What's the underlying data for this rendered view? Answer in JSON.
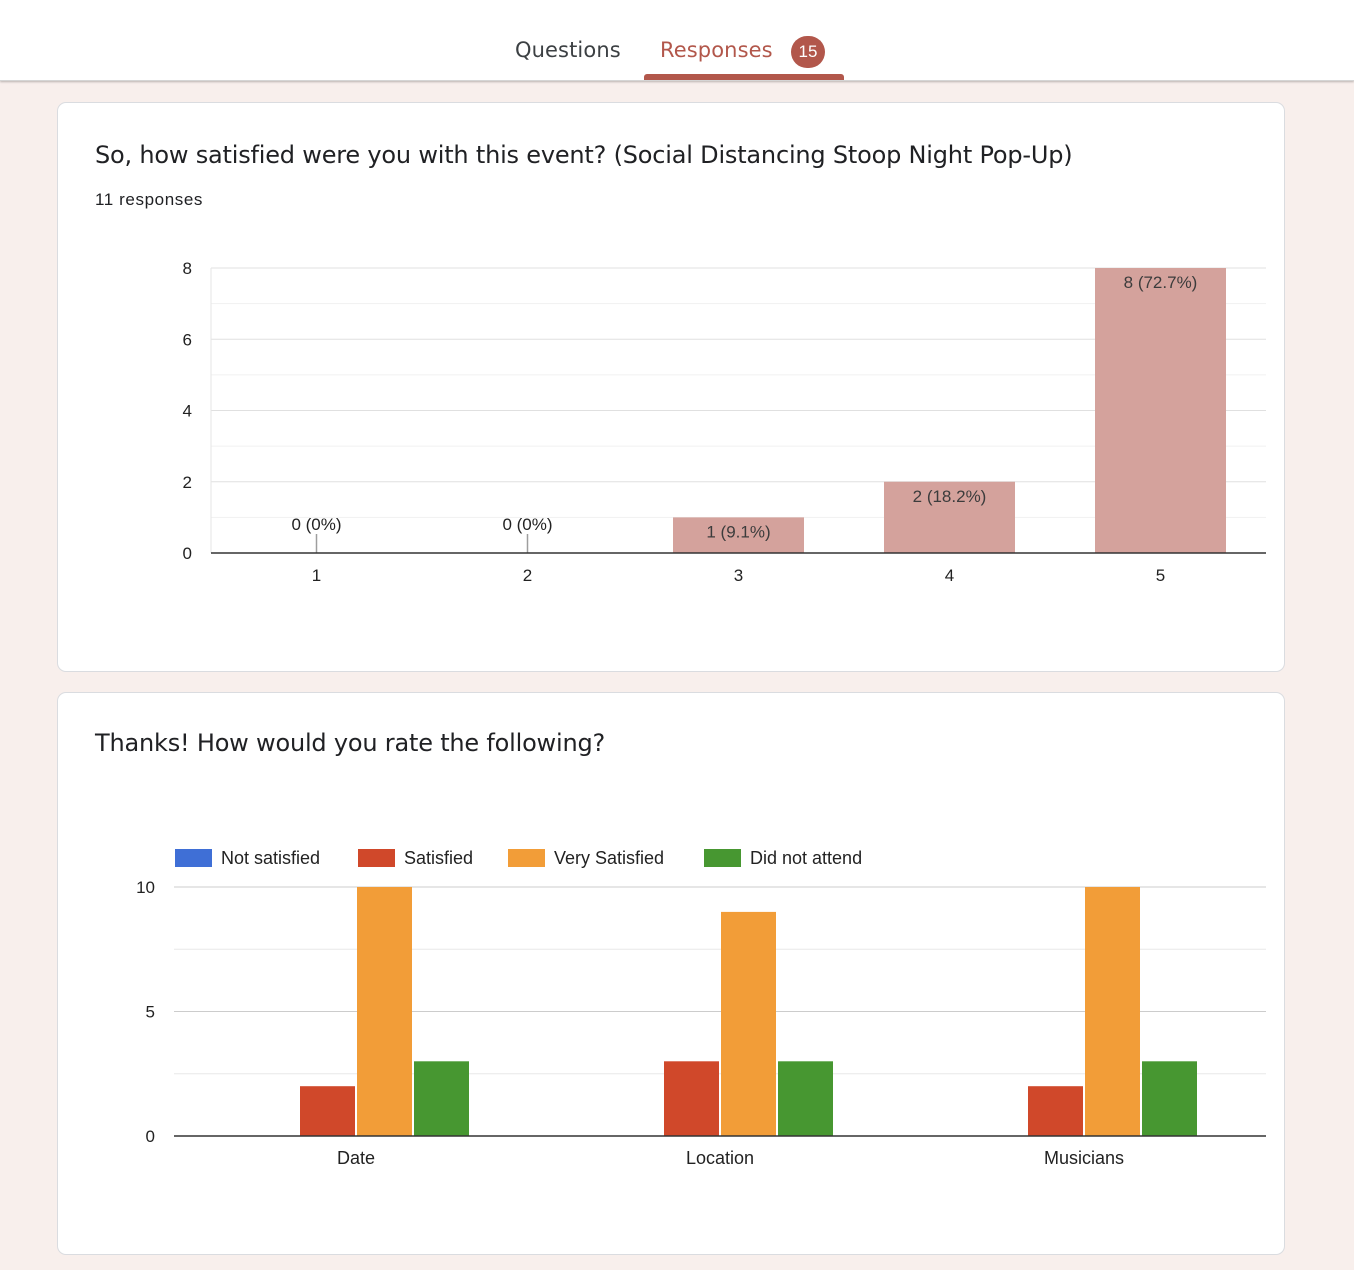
{
  "tabs": {
    "questions_label": "Questions",
    "responses_label": "Responses",
    "responses_count": "15",
    "accent_color": "#b2574b"
  },
  "question1": {
    "title": "So, how satisfied were you with this event? (Social Distancing Stoop Night Pop-Up)",
    "response_count": "11 responses"
  },
  "question2": {
    "title": "Thanks! How would you rate the following?"
  },
  "chart_data": [
    {
      "type": "bar",
      "categories": [
        "1",
        "2",
        "3",
        "4",
        "5"
      ],
      "values": [
        0,
        0,
        1,
        2,
        8
      ],
      "data_labels": [
        "0 (0%)",
        "0 (0%)",
        "1 (9.1%)",
        "2 (18.2%)",
        "8 (72.7%)"
      ],
      "yticks": [
        "0",
        "2",
        "4",
        "6",
        "8"
      ],
      "ylim": [
        0,
        8
      ],
      "bar_color": "#d4a29c",
      "grid": true
    },
    {
      "type": "bar",
      "categories": [
        "Date",
        "Location",
        "Musicians"
      ],
      "series": [
        {
          "name": "Not satisfied",
          "values": [
            0,
            0,
            0
          ],
          "color": "#3f6fd6"
        },
        {
          "name": "Satisfied",
          "values": [
            2,
            3,
            2
          ],
          "color": "#d0482a"
        },
        {
          "name": "Very Satisfied",
          "values": [
            10,
            9,
            10
          ],
          "color": "#f29d38"
        },
        {
          "name": "Did not attend",
          "values": [
            3,
            3,
            3
          ],
          "color": "#479731"
        }
      ],
      "yticks": [
        "0",
        "5",
        "10"
      ],
      "ylim": [
        0,
        10
      ],
      "legend_position": "top-left",
      "grid": true
    }
  ]
}
